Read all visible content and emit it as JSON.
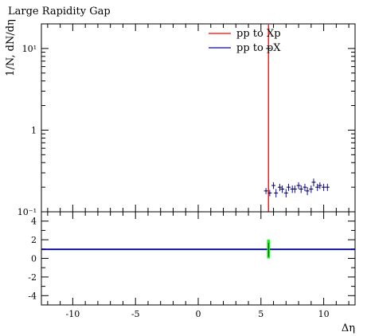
{
  "chart_data": [
    {
      "type": "scatter",
      "panel": "main",
      "title": "Large Rapidity Gap",
      "xlabel": "",
      "ylabel": "1/N, dN/dη",
      "yscale": "log",
      "xlim": [
        -12.5,
        12.5
      ],
      "ylim": [
        0.1,
        20
      ],
      "y_ticks": [
        {
          "value": 0.1,
          "label": "10⁻¹"
        },
        {
          "value": 1,
          "label": "1"
        },
        {
          "value": 10,
          "label": "10¹"
        }
      ],
      "grid": false,
      "legend": "top-center",
      "series": [
        {
          "name": "pp to Xp",
          "color": "#ff0000",
          "style": "step-line",
          "x": [
            5.6
          ],
          "y": [
            10.0
          ],
          "yerr": [
            0.5
          ]
        },
        {
          "name": "pp to pX",
          "color": "#0000cc",
          "style": "points",
          "x": [
            5.4,
            5.7,
            6.0,
            6.2,
            6.5,
            6.7,
            7.0,
            7.2,
            7.5,
            7.7,
            8.0,
            8.2,
            8.5,
            8.7,
            9.0,
            9.2,
            9.5,
            9.7,
            10.0,
            10.3
          ],
          "y": [
            0.18,
            0.17,
            0.21,
            0.17,
            0.2,
            0.19,
            0.17,
            0.2,
            0.19,
            0.19,
            0.21,
            0.19,
            0.2,
            0.18,
            0.19,
            0.23,
            0.2,
            0.21,
            0.2,
            0.2
          ],
          "yerr": [
            0.015,
            0.015,
            0.02,
            0.02,
            0.02,
            0.02,
            0.02,
            0.02,
            0.02,
            0.02,
            0.02,
            0.02,
            0.02,
            0.02,
            0.02,
            0.025,
            0.02,
            0.02,
            0.02,
            0.02
          ]
        }
      ]
    },
    {
      "type": "line",
      "panel": "ratio",
      "xlabel": "Δη",
      "ylabel": "",
      "xlim": [
        -12.5,
        12.5
      ],
      "ylim": [
        -5,
        5
      ],
      "x_ticks": [
        {
          "value": -10,
          "label": "-10"
        },
        {
          "value": -5,
          "label": "-5"
        },
        {
          "value": 0,
          "label": "0"
        },
        {
          "value": 5,
          "label": "5"
        },
        {
          "value": 10,
          "label": "10"
        }
      ],
      "y_ticks": [
        {
          "value": -4,
          "label": "-4"
        },
        {
          "value": -2,
          "label": "-2"
        },
        {
          "value": 0,
          "label": "0"
        },
        {
          "value": 2,
          "label": "2"
        },
        {
          "value": 4,
          "label": "4"
        }
      ],
      "reference": {
        "value": 1,
        "color": "#000000"
      },
      "series": [
        {
          "name": "pp to pX",
          "color": "#0000cc",
          "x": [
            -12.5,
            12.5
          ],
          "y": [
            1,
            1
          ]
        },
        {
          "name": "pp to Xp",
          "color": "#00ff00",
          "band": {
            "x": 5.6,
            "ylow": 0,
            "yhigh": 2
          }
        }
      ]
    }
  ]
}
